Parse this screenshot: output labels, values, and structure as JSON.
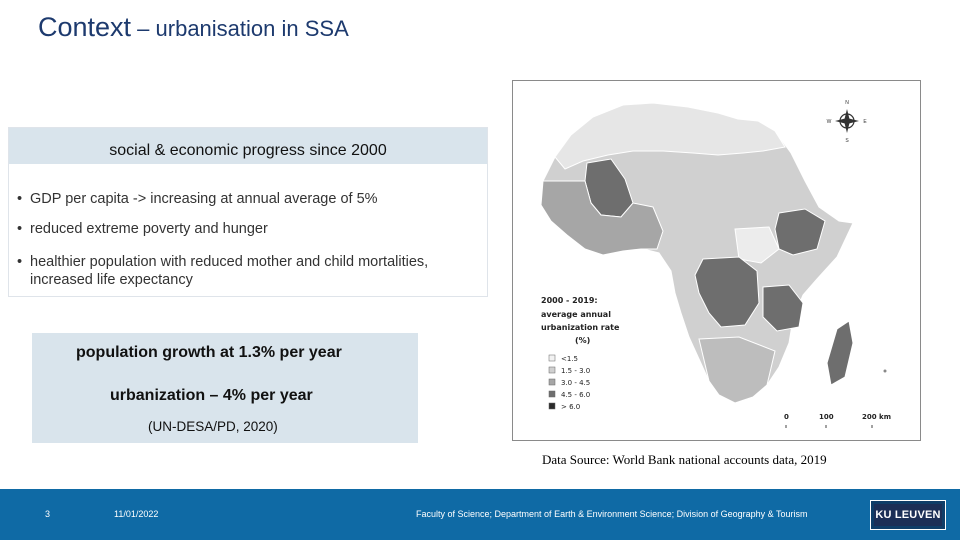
{
  "title": {
    "main": "Context",
    "sub": " – urbanisation in SSA"
  },
  "progress_box": {
    "header": "social & economic progress since 2000",
    "bullets": [
      "GDP per capita -> increasing at annual average of 5%",
      "reduced extreme poverty and hunger",
      "healthier population with reduced mother and child mortalities, increased life expectancy"
    ]
  },
  "growth_box": {
    "line1": "population growth at 1.3% per year",
    "line2": "urbanization – 4% per year",
    "citation": "(UN-DESA/PD, 2020)"
  },
  "map": {
    "legend_title_lines": [
      "2000 - 2019:",
      "average annual",
      "urbanization rate",
      "(%)"
    ],
    "legend_items": [
      {
        "label": "<1.5",
        "color": "#f2f2f2"
      },
      {
        "label": "1.5 - 3.0",
        "color": "#d0d0d0"
      },
      {
        "label": "3.0 - 4.5",
        "color": "#a6a6a6"
      },
      {
        "label": "4.5 - 6.0",
        "color": "#6e6e6e"
      },
      {
        "label": "> 6.0",
        "color": "#2b2b2b"
      }
    ],
    "scale_labels": [
      "0",
      "100",
      "200 km"
    ],
    "compass": {
      "n": "N",
      "e": "E",
      "s": "S",
      "w": "W"
    }
  },
  "source": "Data Source: World Bank national accounts data, 2019",
  "footer": {
    "page_number": "3",
    "date": "11/01/2022",
    "affiliation": "Faculty of Science; Department of Earth & Environment Science; Division of Geography & Tourism",
    "logo": "KU LEUVEN"
  }
}
